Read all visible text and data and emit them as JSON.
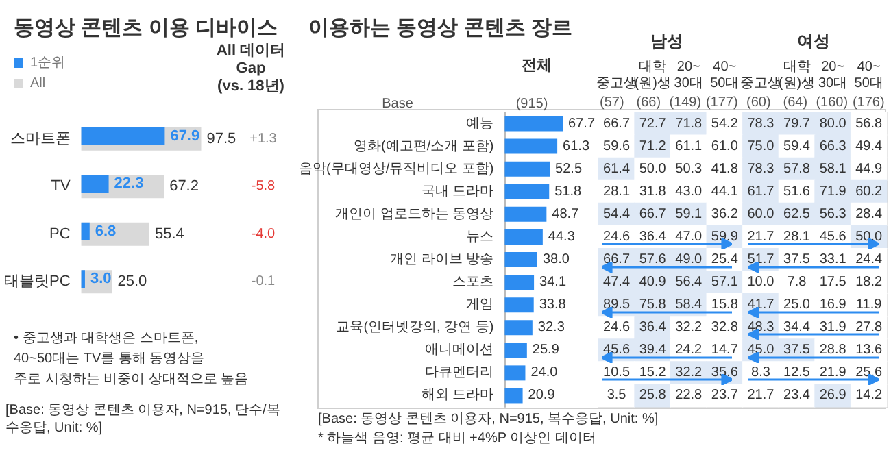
{
  "chart_data": [
    {
      "type": "bar",
      "orientation": "horizontal",
      "title": "동영상 콘텐츠 이용 디바이스",
      "categories": [
        "스마트폰",
        "TV",
        "PC",
        "태블릿PC"
      ],
      "series": [
        {
          "name": "1순위",
          "color": "#2d8cf0",
          "values": [
            67.9,
            22.3,
            6.8,
            3.0
          ],
          "value_labels": [
            "67.9",
            "22.3",
            "6.8",
            "3.0"
          ]
        },
        {
          "name": "All",
          "color": "#d9d9d9",
          "values": [
            97.5,
            67.2,
            55.4,
            25.0
          ],
          "value_labels": [
            "97.5",
            "67.2",
            "55.4",
            "25.0"
          ]
        }
      ],
      "legend": "top left",
      "tick_labels": "y",
      "annotations": [
        "All 데이터\nGap\n(vs. 18년)",
        "+1.3",
        "-5.8",
        "-4.0",
        "-0.1",
        "• 중고생과 대학생은 스마트폰,\n40~50대는 TV를 통해 동영상을\n주로 시청하는 비중이 상대적으로 높음",
        "[Base: 동영상 콘텐츠 이용자, N=915, 단수/복수응답, Unit: %]"
      ]
    },
    {
      "type": "bar",
      "orientation": "horizontal",
      "title": "이용하는 동영상 콘텐츠 장르",
      "categories": [
        "예능",
        "영화(예고편/소개 포함)",
        "음악(무대영상/뮤직비디오 포함)",
        "국내 드라마",
        "개인이 업로드하는 동영상",
        "뉴스",
        "개인 라이브 방송",
        "스포츠",
        "게임",
        "교육(인터넷강의, 강연 등)",
        "애니메이션",
        "다큐멘터리",
        "해외 드라마"
      ],
      "series": [
        {
          "name": "전체",
          "color": "#2d8cf0",
          "values": [
            67.7,
            61.3,
            52.5,
            51.8,
            48.7,
            44.3,
            38.0,
            34.1,
            33.8,
            32.3,
            25.9,
            24.0,
            20.9
          ],
          "value_labels": [
            "67.7",
            "61.3",
            "52.5",
            "51.8",
            "48.7",
            "44.3",
            "38.0",
            "34.1",
            "33.8",
            "32.3",
            "25.9",
            "24.0",
            "20.9"
          ]
        }
      ],
      "tick_labels": "y",
      "annotations": [
        "Base",
        "(915)",
        "[Base: 동영상 콘텐츠 이용자, N=915, 복수응답, Unit: %]",
        "* 하늘색 음영: 평균 대비 +4%P 이상인 데이터"
      ]
    },
    {
      "type": "heatmap",
      "categories": [
        "중고생",
        "대학\n(원)생",
        "20~\n30대",
        "40~\n50대",
        "중고생",
        "대학\n(원)생",
        "20~\n30대",
        "40~\n50대"
      ],
      "y_categories": [
        null,
        null,
        null,
        null,
        null,
        null,
        null,
        null,
        null,
        null,
        null,
        null,
        null
      ],
      "cells": [
        [
          66.7,
          72.7,
          71.8,
          54.2,
          78.3,
          79.7,
          80.0,
          56.8
        ],
        [
          59.6,
          71.2,
          61.1,
          61.0,
          75.0,
          59.4,
          66.3,
          49.4
        ],
        [
          61.4,
          50.0,
          50.3,
          41.8,
          78.3,
          57.8,
          58.1,
          44.9
        ],
        [
          28.1,
          31.8,
          43.0,
          44.1,
          61.7,
          51.6,
          71.9,
          60.2
        ],
        [
          54.4,
          66.7,
          59.1,
          36.2,
          60.0,
          62.5,
          56.3,
          28.4
        ],
        [
          24.6,
          36.4,
          47.0,
          59.9,
          21.7,
          28.1,
          45.6,
          50.0
        ],
        [
          66.7,
          57.6,
          49.0,
          25.4,
          51.7,
          37.5,
          33.1,
          24.4
        ],
        [
          47.4,
          40.9,
          56.4,
          57.1,
          10.0,
          7.8,
          17.5,
          18.2
        ],
        [
          89.5,
          75.8,
          58.4,
          15.8,
          41.7,
          25.0,
          16.9,
          11.9
        ],
        [
          24.6,
          36.4,
          32.2,
          32.8,
          48.3,
          34.4,
          31.9,
          27.8
        ],
        [
          45.6,
          39.4,
          24.2,
          14.7,
          45.0,
          37.5,
          28.8,
          13.6
        ],
        [
          10.5,
          15.2,
          32.2,
          35.6,
          8.3,
          12.5,
          21.9,
          25.6
        ],
        [
          3.5,
          25.8,
          22.8,
          23.7,
          21.7,
          23.4,
          26.9,
          14.2
        ]
      ],
      "cell_labels": [
        [
          "66.7",
          "72.7",
          "71.8",
          "54.2",
          "78.3",
          "79.7",
          "80.0",
          "56.8"
        ],
        [
          "59.6",
          "71.2",
          "61.1",
          "61.0",
          "75.0",
          "59.4",
          "66.3",
          "49.4"
        ],
        [
          "61.4",
          "50.0",
          "50.3",
          "41.8",
          "78.3",
          "57.8",
          "58.1",
          "44.9"
        ],
        [
          "28.1",
          "31.8",
          "43.0",
          "44.1",
          "61.7",
          "51.6",
          "71.9",
          "60.2"
        ],
        [
          "54.4",
          "66.7",
          "59.1",
          "36.2",
          "60.0",
          "62.5",
          "56.3",
          "28.4"
        ],
        [
          "24.6",
          "36.4",
          "47.0",
          "59.9",
          "21.7",
          "28.1",
          "45.6",
          "50.0"
        ],
        [
          "66.7",
          "57.6",
          "49.0",
          "25.4",
          "51.7",
          "37.5",
          "33.1",
          "24.4"
        ],
        [
          "47.4",
          "40.9",
          "56.4",
          "57.1",
          "10.0",
          "7.8",
          "17.5",
          "18.2"
        ],
        [
          "89.5",
          "75.8",
          "58.4",
          "15.8",
          "41.7",
          "25.0",
          "16.9",
          "11.9"
        ],
        [
          "24.6",
          "36.4",
          "32.2",
          "32.8",
          "48.3",
          "34.4",
          "31.9",
          "27.8"
        ],
        [
          "45.6",
          "39.4",
          "24.2",
          "14.7",
          "45.0",
          "37.5",
          "28.8",
          "13.6"
        ],
        [
          "10.5",
          "15.2",
          "32.2",
          "35.6",
          "8.3",
          "12.5",
          "21.9",
          "25.6"
        ],
        [
          "3.5",
          "25.8",
          "22.8",
          "23.7",
          "21.7",
          "23.4",
          "26.9",
          "14.2"
        ]
      ],
      "tick_labels": "x",
      "annotations": [
        "남성",
        "여성",
        "(57)",
        "(66)",
        "(149)",
        "(177)",
        "(60)",
        "(64)",
        "(160)",
        "(176)"
      ]
    }
  ]
}
